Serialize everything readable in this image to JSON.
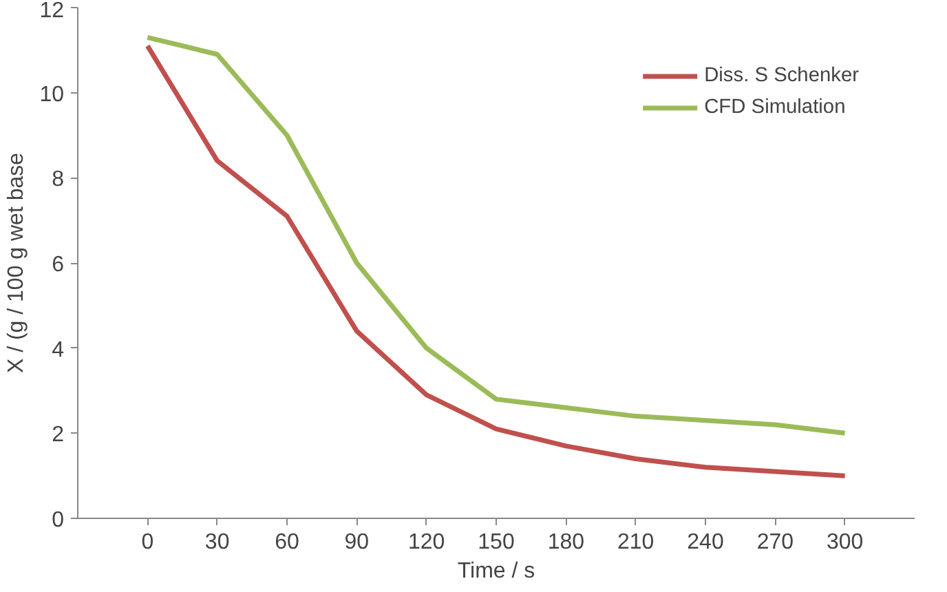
{
  "chart_data": {
    "type": "line",
    "xlabel": "Time / s",
    "ylabel": "X / (g / 100 g wet base",
    "categories": [
      "0",
      "30",
      "60",
      "90",
      "120",
      "150",
      "180",
      "210",
      "240",
      "270",
      "300"
    ],
    "series": [
      {
        "name": "Diss. S Schenker",
        "color": "#c0504d",
        "values": [
          11.1,
          8.4,
          7.1,
          4.4,
          2.9,
          2.1,
          1.7,
          1.4,
          1.2,
          1.1,
          1.0
        ]
      },
      {
        "name": "CFD Simulation",
        "color": "#9bbb59",
        "values": [
          11.3,
          10.9,
          9.0,
          6.0,
          4.0,
          2.8,
          2.6,
          2.4,
          2.3,
          2.2,
          2.0
        ]
      }
    ],
    "ylim": [
      0,
      12
    ],
    "yticks": [
      0,
      2,
      4,
      6,
      8,
      10,
      12
    ],
    "grid": false,
    "legend": "top right",
    "marker": "none",
    "line_style": "solid"
  }
}
